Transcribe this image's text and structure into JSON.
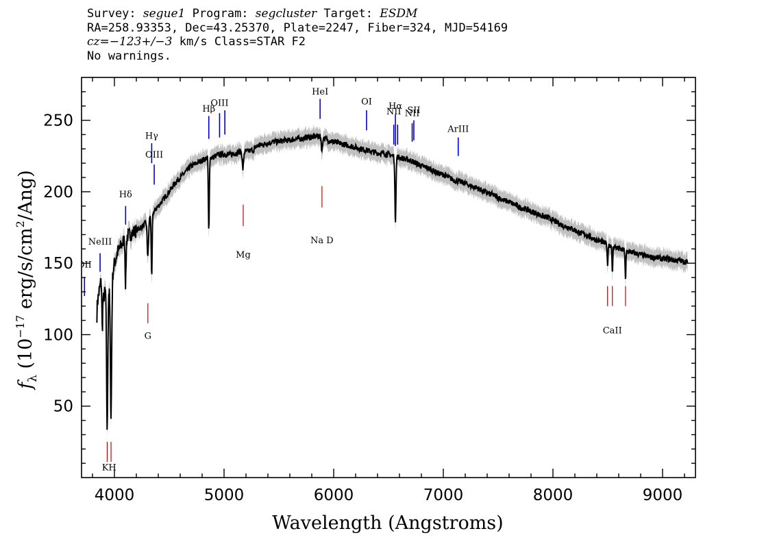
{
  "header": {
    "survey_label": "Survey:",
    "survey": "segue1",
    "program_label": "Program:",
    "program": "segcluster",
    "target_label": "Target:",
    "target": "ESDM",
    "coords": "RA=258.93353, Dec=43.25370, Plate=2247, Fiber=324, MJD=54169",
    "cz_label": "cz=",
    "cz_value": "−123+/−3",
    "cz_rest": " km/s Class=STAR F2",
    "warnings": "No warnings."
  },
  "chart_data": {
    "type": "line",
    "xlabel": "Wavelength (Angstroms)",
    "ylabel_prefix": "f",
    "ylabel_sub": "λ",
    "ylabel_main": " (10",
    "ylabel_exp1": "−17",
    "ylabel_mid": " erg/s/cm",
    "ylabel_exp2": "2",
    "ylabel_end": "/Ang)",
    "xlim": [
      3700,
      9300
    ],
    "ylim": [
      0,
      280
    ],
    "xticks": [
      4000,
      5000,
      6000,
      7000,
      8000,
      9000
    ],
    "yticks": [
      50,
      100,
      150,
      200,
      250
    ],
    "colors": {
      "flux": "#000000",
      "error_band": "#c0c0c0",
      "emission": "#0000cc",
      "absorption": "#cc0000"
    },
    "continuum": {
      "x": [
        3840,
        3860,
        3880,
        3900,
        3920,
        3945,
        3960,
        3980,
        4000,
        4030,
        4060,
        4100,
        4140,
        4180,
        4220,
        4260,
        4300,
        4340,
        4380,
        4420,
        4460,
        4500,
        4550,
        4600,
        4650,
        4700,
        4750,
        4800,
        4850,
        4900,
        4950,
        5000,
        5050,
        5100,
        5150,
        5200,
        5250,
        5300,
        5350,
        5400,
        5450,
        5500,
        5550,
        5600,
        5650,
        5700,
        5750,
        5800,
        5850,
        5900,
        5950,
        6000,
        6050,
        6100,
        6150,
        6200,
        6250,
        6300,
        6350,
        6400,
        6450,
        6500,
        6550,
        6600,
        6650,
        6700,
        6750,
        6800,
        6850,
        6900,
        6950,
        7000,
        7050,
        7100,
        7150,
        7200,
        7250,
        7300,
        7350,
        7400,
        7450,
        7500,
        7550,
        7600,
        7650,
        7700,
        7750,
        7800,
        7850,
        7900,
        7950,
        8000,
        8050,
        8100,
        8150,
        8200,
        8250,
        8300,
        8350,
        8400,
        8450,
        8500,
        8550,
        8600,
        8650,
        8700,
        8750,
        8800,
        8850,
        8900,
        8950,
        9000,
        9050,
        9100,
        9150,
        9200,
        9230
      ],
      "y": [
        120,
        130,
        138,
        125,
        132,
        135,
        128,
        140,
        150,
        158,
        162,
        168,
        170,
        172,
        174,
        176,
        180,
        184,
        188,
        192,
        196,
        200,
        206,
        210,
        214,
        218,
        220,
        222,
        224,
        224,
        226,
        226,
        226,
        227,
        228,
        228,
        229,
        232,
        233,
        234,
        235,
        235,
        236,
        236,
        237,
        237,
        238,
        238,
        239,
        238,
        236,
        235,
        234,
        233,
        232,
        231,
        230,
        229,
        228,
        227,
        227,
        226,
        225,
        224,
        223,
        222,
        220,
        218,
        217,
        215,
        213,
        212,
        210,
        208,
        207,
        206,
        204,
        203,
        201,
        199,
        198,
        196,
        194,
        193,
        191,
        189,
        188,
        186,
        185,
        183,
        182,
        180,
        178,
        176,
        175,
        173,
        171,
        170,
        168,
        166,
        165,
        163,
        162,
        160,
        159,
        158,
        157,
        156,
        155,
        154,
        154,
        153,
        153,
        152,
        152,
        151,
        151
      ]
    },
    "absorption_features": [
      {
        "x": 3934,
        "depth": 100,
        "width": 8
      },
      {
        "x": 3969,
        "depth": 90,
        "width": 8
      },
      {
        "x": 3889,
        "depth": 28,
        "width": 5
      },
      {
        "x": 3835,
        "depth": 18,
        "width": 5
      },
      {
        "x": 4102,
        "depth": 33,
        "width": 6
      },
      {
        "x": 4305,
        "depth": 25,
        "width": 9
      },
      {
        "x": 4340,
        "depth": 45,
        "width": 6
      },
      {
        "x": 4861,
        "depth": 52,
        "width": 6
      },
      {
        "x": 5172,
        "depth": 12,
        "width": 8
      },
      {
        "x": 5270,
        "depth": 4,
        "width": 4
      },
      {
        "x": 5893,
        "depth": 10,
        "width": 7
      },
      {
        "x": 6563,
        "depth": 45,
        "width": 7
      },
      {
        "x": 8498,
        "depth": 15,
        "width": 5
      },
      {
        "x": 8542,
        "depth": 20,
        "width": 5
      },
      {
        "x": 8662,
        "depth": 22,
        "width": 5
      }
    ],
    "emission_lines": [
      {
        "label": "OII",
        "x": 3727,
        "label_y": 147,
        "y1": 140,
        "y2": 127
      },
      {
        "label": "NeIII",
        "x": 3869,
        "label_y": 163,
        "y1": 157,
        "y2": 144
      },
      {
        "label": "Hδ",
        "x": 4102,
        "label_y": 196,
        "y1": 190,
        "y2": 177
      },
      {
        "label": "Hγ",
        "x": 4340,
        "label_y": 237,
        "y1": 234,
        "y2": 220
      },
      {
        "label": "OIII",
        "x": 4363,
        "label_y": 224,
        "y1": 219,
        "y2": 205
      },
      {
        "label": "Hβ",
        "x": 4861,
        "label_y": 256,
        "y1": 253,
        "y2": 237
      },
      {
        "label": "OIII",
        "x": 4959,
        "label_y": 260,
        "y1": 255,
        "y2": 238
      },
      {
        "label": "",
        "x": 5007,
        "label_y": 0,
        "y1": 257,
        "y2": 240
      },
      {
        "label": "HeI",
        "x": 5876,
        "label_y": 268,
        "y1": 265,
        "y2": 251
      },
      {
        "label": "OI",
        "x": 6300,
        "label_y": 261,
        "y1": 257,
        "y2": 243
      },
      {
        "label": "NII",
        "x": 6548,
        "label_y": 254,
        "y1": 247,
        "y2": 233
      },
      {
        "label": "Hα",
        "x": 6563,
        "label_y": 258,
        "y1": 254,
        "y2": 232
      },
      {
        "label": "",
        "x": 6583,
        "label_y": 0,
        "y1": 247,
        "y2": 233
      },
      {
        "label": "NII",
        "x": 6716,
        "label_y": 253,
        "y1": 248,
        "y2": 235
      },
      {
        "label": "SII",
        "x": 6731,
        "label_y": 255,
        "y1": 250,
        "y2": 236
      },
      {
        "label": "ArIII",
        "x": 7136,
        "label_y": 242,
        "y1": 238,
        "y2": 225
      }
    ],
    "absorption_lines": [
      {
        "label": "KH",
        "x": 3934,
        "x2": 3969,
        "label_y": 5,
        "y1": 25,
        "y2": 11
      },
      {
        "label": "G",
        "x": 4305,
        "label_y": 97,
        "y1": 122,
        "y2": 108
      },
      {
        "label": "Mg",
        "x": 5175,
        "label_y": 154,
        "y1": 191,
        "y2": 176
      },
      {
        "label": "Na D",
        "x": 5893,
        "label_y": 164,
        "y1": 204,
        "y2": 189
      },
      {
        "label": "CaII",
        "x": 8542,
        "x_all": [
          8498,
          8542,
          8662
        ],
        "label_y": 101,
        "y1": 134,
        "y2": 120
      }
    ]
  }
}
